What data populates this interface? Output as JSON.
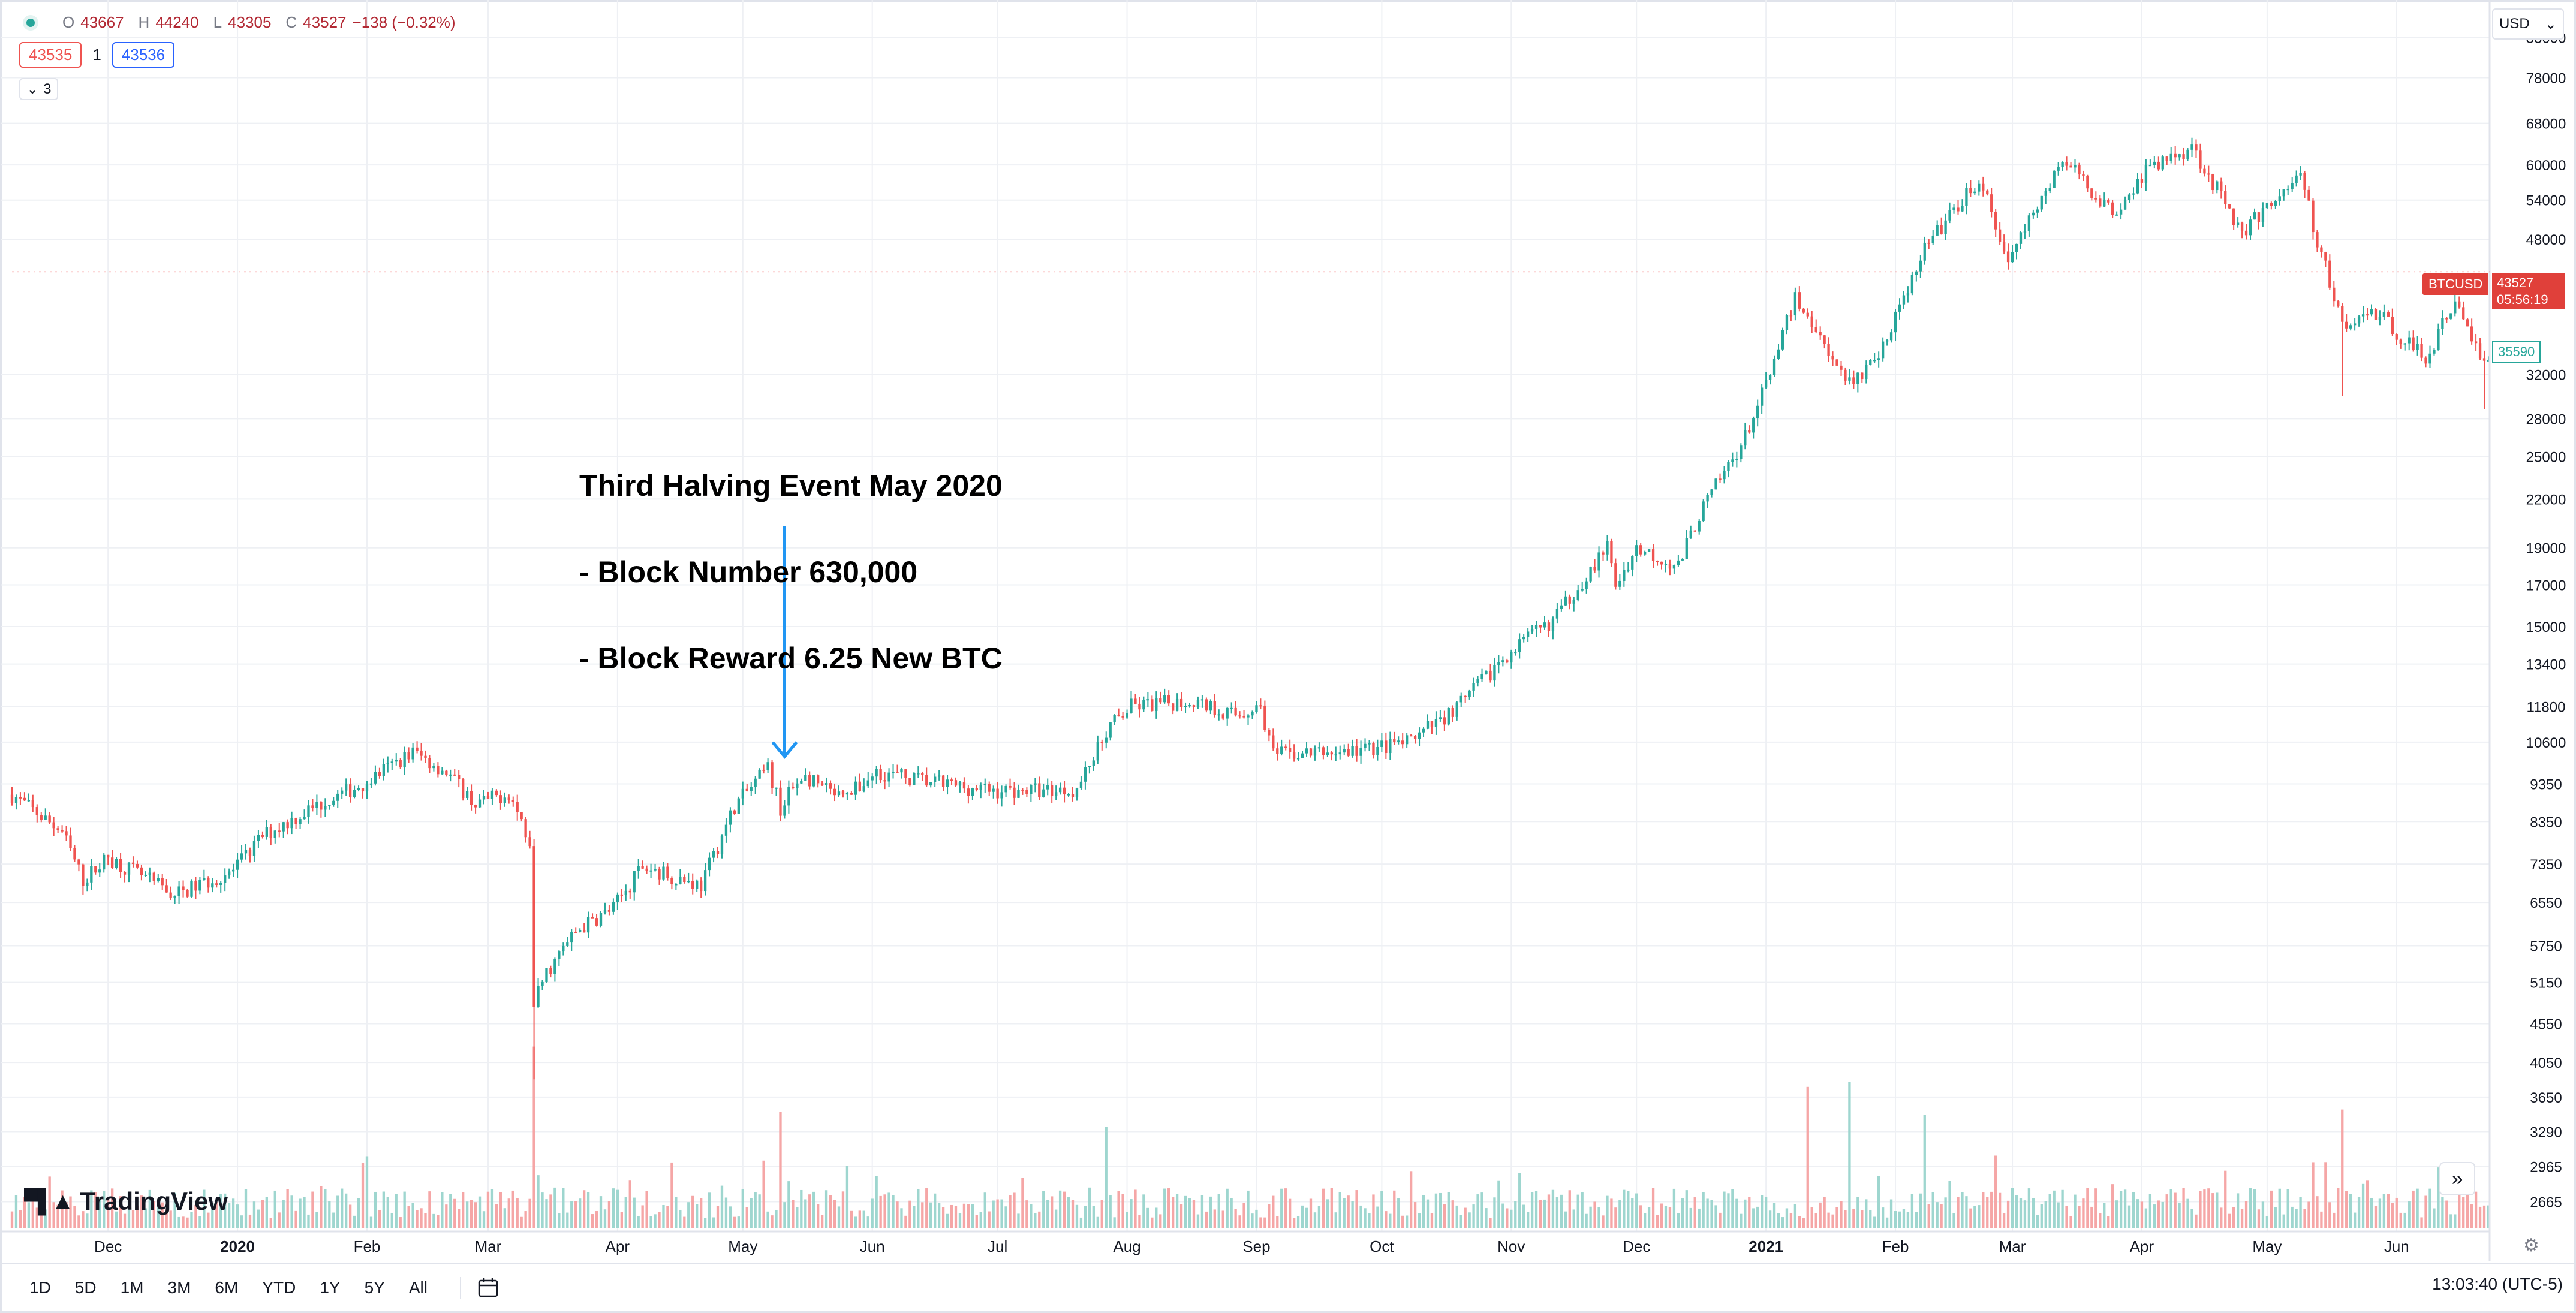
{
  "legend": {
    "open_label": "O",
    "open": "43667",
    "high_label": "H",
    "high": "44240",
    "low_label": "L",
    "low": "43305",
    "close_label": "C",
    "close": "43527",
    "change": "−138 (−0.32%)",
    "bid": "43535",
    "spread": "1",
    "ask": "43536",
    "collapse_count": "3"
  },
  "annotation": {
    "line1": "Third Halving Event May 2020",
    "line2": "- Block Number 630,000",
    "line3": "- Block Reward 6.25 New BTC",
    "arrow_date": "2020-05-11",
    "color": "#2196f3"
  },
  "price_axis": {
    "currency": "USD",
    "symbol": "BTCUSD",
    "last_price": "43527",
    "countdown": "05:56:19",
    "marker_price": "35590"
  },
  "logo": {
    "text": "TradingView"
  },
  "toolbar": {
    "ranges": [
      "1D",
      "5D",
      "1M",
      "3M",
      "6M",
      "YTD",
      "1Y",
      "5Y",
      "All"
    ],
    "clock": "13:03:40 (UTC-5)"
  },
  "colors": {
    "up": "#26a69a",
    "down": "#ef5350",
    "up_volume": "#9ed6cf",
    "down_volume": "#f5a6a6",
    "grid": "#eef0f4"
  },
  "chart_data": {
    "type": "candlestick",
    "symbol": "BTCUSD",
    "interval": "1D",
    "x_range": [
      "2019-11-08",
      "2021-06-23"
    ],
    "y_scale": "log",
    "y_range": [
      2500,
      95000
    ],
    "y_ticks": [
      88000,
      78000,
      68000,
      60000,
      54000,
      48000,
      32000,
      28000,
      25000,
      22000,
      19000,
      17000,
      15000,
      13400,
      11800,
      10600,
      9350,
      8350,
      7350,
      6550,
      5750,
      5150,
      4550,
      4050,
      3650,
      3290,
      2965,
      2665
    ],
    "x_ticks": [
      {
        "label": "Dec",
        "date": "2019-12-01"
      },
      {
        "label": "2020",
        "date": "2020-01-01"
      },
      {
        "label": "Feb",
        "date": "2020-02-01"
      },
      {
        "label": "Mar",
        "date": "2020-03-01"
      },
      {
        "label": "Apr",
        "date": "2020-04-01"
      },
      {
        "label": "May",
        "date": "2020-05-01"
      },
      {
        "label": "Jun",
        "date": "2020-06-01"
      },
      {
        "label": "Jul",
        "date": "2020-07-01"
      },
      {
        "label": "Aug",
        "date": "2020-08-01"
      },
      {
        "label": "Sep",
        "date": "2020-09-01"
      },
      {
        "label": "Oct",
        "date": "2020-10-01"
      },
      {
        "label": "Nov",
        "date": "2020-11-01"
      },
      {
        "label": "Dec",
        "date": "2020-12-01"
      },
      {
        "label": "2021",
        "date": "2021-01-01"
      },
      {
        "label": "Feb",
        "date": "2021-02-01"
      },
      {
        "label": "Mar",
        "date": "2021-03-01"
      },
      {
        "label": "Apr",
        "date": "2021-04-01"
      },
      {
        "label": "May",
        "date": "2021-05-01"
      },
      {
        "label": "Jun",
        "date": "2021-06-01"
      }
    ],
    "close_anchors": [
      [
        "2019-11-08",
        9050
      ],
      [
        "2019-11-20",
        8100
      ],
      [
        "2019-11-25",
        7000
      ],
      [
        "2019-12-01",
        7500
      ],
      [
        "2019-12-17",
        6700
      ],
      [
        "2019-12-31",
        7200
      ],
      [
        "2020-01-07",
        8000
      ],
      [
        "2020-01-19",
        8700
      ],
      [
        "2020-01-31",
        9350
      ],
      [
        "2020-02-12",
        10300
      ],
      [
        "2020-02-20",
        9700
      ],
      [
        "2020-02-27",
        8800
      ],
      [
        "2020-03-06",
        9100
      ],
      [
        "2020-03-11",
        7900
      ],
      [
        "2020-03-12",
        4900
      ],
      [
        "2020-03-15",
        5300
      ],
      [
        "2020-03-22",
        6000
      ],
      [
        "2020-03-31",
        6450
      ],
      [
        "2020-04-07",
        7300
      ],
      [
        "2020-04-21",
        6900
      ],
      [
        "2020-04-29",
        8750
      ],
      [
        "2020-05-07",
        9800
      ],
      [
        "2020-05-10",
        8700
      ],
      [
        "2020-05-15",
        9600
      ],
      [
        "2020-05-25",
        8900
      ],
      [
        "2020-06-02",
        9700
      ],
      [
        "2020-06-15",
        9400
      ],
      [
        "2020-06-30",
        9150
      ],
      [
        "2020-07-20",
        9200
      ],
      [
        "2020-07-27",
        11000
      ],
      [
        "2020-08-02",
        11800
      ],
      [
        "2020-08-17",
        12000
      ],
      [
        "2020-08-27",
        11500
      ],
      [
        "2020-09-02",
        11800
      ],
      [
        "2020-09-05",
        10200
      ],
      [
        "2020-09-23",
        10300
      ],
      [
        "2020-10-08",
        10600
      ],
      [
        "2020-10-20",
        11900
      ],
      [
        "2020-10-31",
        13800
      ],
      [
        "2020-11-11",
        15300
      ],
      [
        "2020-11-24",
        19000
      ],
      [
        "2020-11-26",
        17000
      ],
      [
        "2020-12-01",
        19000
      ],
      [
        "2020-12-11",
        18000
      ],
      [
        "2020-12-16",
        21000
      ],
      [
        "2020-12-27",
        26500
      ],
      [
        "2021-01-03",
        33000
      ],
      [
        "2021-01-08",
        40500
      ],
      [
        "2021-01-21",
        31000
      ],
      [
        "2021-01-28",
        34000
      ],
      [
        "2021-02-08",
        46500
      ],
      [
        "2021-02-21",
        57500
      ],
      [
        "2021-02-28",
        45000
      ],
      [
        "2021-03-13",
        61000
      ],
      [
        "2021-03-25",
        52000
      ],
      [
        "2021-04-02",
        59000
      ],
      [
        "2021-04-13",
        63500
      ],
      [
        "2021-04-25",
        49000
      ],
      [
        "2021-05-09",
        58500
      ],
      [
        "2021-05-12",
        50000
      ],
      [
        "2021-05-19",
        37000
      ],
      [
        "2021-05-26",
        39000
      ],
      [
        "2021-06-08",
        33500
      ],
      [
        "2021-06-15",
        40000
      ],
      [
        "2021-06-22",
        33000
      ]
    ],
    "wick_extremes": [
      [
        "2020-03-12",
        3850
      ],
      [
        "2021-05-19",
        30000
      ],
      [
        "2021-06-22",
        28800
      ],
      [
        "2021-04-14",
        64800
      ]
    ],
    "volume_spikes": [
      [
        "2020-03-12",
        0.72
      ],
      [
        "2020-05-10",
        0.46
      ],
      [
        "2020-07-27",
        0.4
      ],
      [
        "2021-01-11",
        0.56
      ],
      [
        "2021-01-21",
        0.58
      ],
      [
        "2021-02-08",
        0.45
      ],
      [
        "2021-05-19",
        0.47
      ]
    ]
  }
}
